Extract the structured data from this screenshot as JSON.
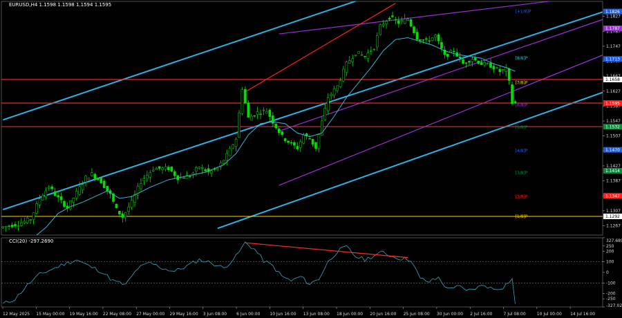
{
  "header": {
    "main_label": "EURUSD,H4  1.1598 1.1598 1.1594 1.1595",
    "osc_label": "CCI(20) -297.2690"
  },
  "colors": {
    "background": "#000000",
    "candle": "#00e000",
    "ma": "#3fb6d6",
    "channel": "#2bb3e6",
    "channel_purple": "#9b30d8",
    "level": "#ff2020",
    "yellow": "#ffd700",
    "cci": "#38a8c0",
    "divergence": "#ff2a2a",
    "badge_blue": "#1f5ce0",
    "badge_purple": "#9b30d8",
    "badge_green": "#0b8a3a"
  },
  "chart_data": [
    {
      "type": "line",
      "title": "EURUSD,H4",
      "y_axis": {
        "min": 1.1242,
        "max": 1.1867,
        "ticks": [
          1.1827,
          1.1787,
          1.1747,
          1.1707,
          1.1667,
          1.1627,
          1.1587,
          1.1547,
          1.1507,
          1.1467,
          1.1427,
          1.1387,
          1.1347,
          1.1307,
          1.1267
        ]
      },
      "x_axis": {
        "labels": [
          "12 May 2025",
          "15 May 00:00",
          "19 May 16:00",
          "22 May 08:00",
          "27 May 00:00",
          "29 May 16:00",
          "3 Jun 08:00",
          "6 Jun 00:00",
          "10 Jun 16:00",
          "13 Jun 08:00",
          "18 Jun 00:00",
          "20 Jun 16:00",
          "25 Jun 08:00",
          "30 Jun 00:00",
          "2 Jul 16:00",
          "7 Jul 08:00",
          "10 Jul 00:00",
          "14 Jul 16:00"
        ]
      },
      "price_path": [
        [
          0,
          1.1262
        ],
        [
          6,
          1.1272
        ],
        [
          10,
          1.1285
        ],
        [
          13,
          1.134
        ],
        [
          16,
          1.1372
        ],
        [
          19,
          1.134
        ],
        [
          22,
          1.1315
        ],
        [
          25,
          1.1355
        ],
        [
          28,
          1.1395
        ],
        [
          30,
          1.1405
        ],
        [
          33,
          1.1385
        ],
        [
          36,
          1.135
        ],
        [
          38,
          1.131
        ],
        [
          40,
          1.129
        ],
        [
          43,
          1.133
        ],
        [
          46,
          1.1385
        ],
        [
          50,
          1.142
        ],
        [
          55,
          1.142
        ],
        [
          58,
          1.1395
        ],
        [
          62,
          1.14
        ],
        [
          65,
          1.1425
        ],
        [
          68,
          1.141
        ],
        [
          71,
          1.142
        ],
        [
          74,
          1.1455
        ],
        [
          77,
          1.15
        ],
        [
          79,
          1.1635
        ],
        [
          81,
          1.1555
        ],
        [
          84,
          1.157
        ],
        [
          87,
          1.1575
        ],
        [
          89,
          1.1545
        ],
        [
          92,
          1.1505
        ],
        [
          95,
          1.1485
        ],
        [
          97,
          1.1475
        ],
        [
          99,
          1.151
        ],
        [
          101,
          1.15
        ],
        [
          103,
          1.1475
        ],
        [
          105,
          1.1545
        ],
        [
          107,
          1.161
        ],
        [
          110,
          1.164
        ],
        [
          113,
          1.17
        ],
        [
          116,
          1.173
        ],
        [
          119,
          1.172
        ],
        [
          122,
          1.1745
        ],
        [
          124,
          1.18
        ],
        [
          127,
          1.1825
        ],
        [
          130,
          1.181
        ],
        [
          133,
          1.182
        ],
        [
          136,
          1.177
        ],
        [
          139,
          1.176
        ],
        [
          142,
          1.1775
        ],
        [
          145,
          1.172
        ],
        [
          148,
          1.1735
        ],
        [
          151,
          1.17
        ],
        [
          154,
          1.1715
        ],
        [
          157,
          1.17
        ],
        [
          160,
          1.1695
        ],
        [
          163,
          1.168
        ],
        [
          165,
          1.1685
        ],
        [
          166,
          1.165
        ],
        [
          167,
          1.1595
        ]
      ],
      "ma_path": [
        [
          0,
          1.1225
        ],
        [
          10,
          1.1235
        ],
        [
          14,
          1.1262
        ],
        [
          18,
          1.13
        ],
        [
          22,
          1.1318
        ],
        [
          26,
          1.133
        ],
        [
          30,
          1.1345
        ],
        [
          34,
          1.136
        ],
        [
          38,
          1.134
        ],
        [
          42,
          1.1345
        ],
        [
          48,
          1.137
        ],
        [
          54,
          1.139
        ],
        [
          60,
          1.14
        ],
        [
          66,
          1.141
        ],
        [
          72,
          1.143
        ],
        [
          76,
          1.146
        ],
        [
          80,
          1.151
        ],
        [
          84,
          1.154
        ],
        [
          88,
          1.1545
        ],
        [
          92,
          1.154
        ],
        [
          96,
          1.1515
        ],
        [
          100,
          1.1505
        ],
        [
          104,
          1.1515
        ],
        [
          108,
          1.156
        ],
        [
          112,
          1.161
        ],
        [
          116,
          1.165
        ],
        [
          120,
          1.169
        ],
        [
          124,
          1.1735
        ],
        [
          128,
          1.1765
        ],
        [
          132,
          1.177
        ],
        [
          136,
          1.176
        ],
        [
          140,
          1.175
        ],
        [
          144,
          1.1735
        ],
        [
          148,
          1.1725
        ],
        [
          152,
          1.172
        ],
        [
          156,
          1.1715
        ],
        [
          160,
          1.17
        ],
        [
          164,
          1.169
        ],
        [
          167,
          1.168
        ]
      ],
      "channel_lines": [
        {
          "color": "channel",
          "from": [
            0,
            1.155
          ],
          "to": [
            122,
            1.1887
          ]
        },
        {
          "color": "channel",
          "from": [
            0,
            1.131
          ],
          "to": [
            196,
            1.184
          ]
        },
        {
          "color": "channel",
          "from": [
            70,
            1.126
          ],
          "to": [
            196,
            1.1625
          ]
        },
        {
          "color": "channel_purple",
          "from": [
            90,
            1.178
          ],
          "to": [
            196,
            1.1885
          ]
        },
        {
          "color": "channel_purple",
          "from": [
            90,
            1.152
          ],
          "to": [
            196,
            1.182
          ]
        },
        {
          "color": "channel_purple",
          "from": [
            90,
            1.1375
          ],
          "to": [
            196,
            1.1725
          ]
        },
        {
          "color": "level",
          "from": [
            79,
            1.1625
          ],
          "to": [
            128,
            1.1862
          ]
        }
      ],
      "levels": [
        {
          "price": 1.1658,
          "color": "level"
        },
        {
          "price": 1.1595,
          "color": "level"
        },
        {
          "price": 1.1532,
          "color": "level"
        },
        {
          "price": 1.1292,
          "color": "yellow"
        }
      ],
      "price_labels": [
        {
          "value": "1.1826",
          "price": 1.184,
          "style": "badge_blue"
        },
        {
          "value": "1.1787",
          "price": 1.1795,
          "style": "badge_purple"
        },
        {
          "value": "1.1713",
          "price": 1.1713,
          "style": "badge_blue"
        },
        {
          "value": "1.1658",
          "price": 1.1658,
          "style": "white"
        },
        {
          "value": "1.1595",
          "price": 1.1595,
          "style": "red"
        },
        {
          "value": "1.1532",
          "price": 1.1532,
          "style": "badge_green"
        },
        {
          "value": "1.1470",
          "price": 1.147,
          "style": "badge_blue"
        },
        {
          "value": "1.1414",
          "price": 1.1414,
          "style": "badge_green"
        },
        {
          "value": "1.1347",
          "price": 1.1347,
          "style": "red"
        },
        {
          "value": "1.1292",
          "price": 1.1292,
          "style": "white"
        }
      ],
      "murrey_labels": [
        {
          "text": "[+1/8]P",
          "price": 1.184,
          "color": "#2a5fe0"
        },
        {
          "text": "[8/8]P",
          "price": 1.1715,
          "color": "#3fb6d6"
        },
        {
          "text": "[7/8]P",
          "price": 1.165,
          "color": "#ffd700"
        },
        {
          "text": "[6/8]P",
          "price": 1.159,
          "color": "#9b30d8"
        },
        {
          "text": "[5/8]P",
          "price": 1.153,
          "color": "#0b8a3a"
        },
        {
          "text": "[4/8]P",
          "price": 1.1468,
          "color": "#2a5fe0"
        },
        {
          "text": "[3/8]P",
          "price": 1.1408,
          "color": "#0b8a3a"
        },
        {
          "text": "[2/8]P",
          "price": 1.1345,
          "color": "#ff2020"
        },
        {
          "text": "[1/8]P",
          "price": 1.1292,
          "color": "#ffd700"
        }
      ]
    },
    {
      "type": "line",
      "title": "CCI(20) -297.2690",
      "y_axis": {
        "min": -327.0,
        "max": 327.0,
        "ticks": [
          327.6899,
          250,
          200,
          100,
          0,
          -100,
          -200,
          -250,
          -327.0289
        ]
      },
      "levels": [
        100,
        -100
      ],
      "cci_path": [
        [
          0,
          -300
        ],
        [
          4,
          -250
        ],
        [
          8,
          -120
        ],
        [
          12,
          -20
        ],
        [
          16,
          30
        ],
        [
          20,
          80
        ],
        [
          24,
          120
        ],
        [
          28,
          60
        ],
        [
          32,
          10
        ],
        [
          36,
          -80
        ],
        [
          40,
          -120
        ],
        [
          44,
          40
        ],
        [
          48,
          90
        ],
        [
          52,
          40
        ],
        [
          56,
          10
        ],
        [
          60,
          60
        ],
        [
          64,
          120
        ],
        [
          68,
          90
        ],
        [
          72,
          40
        ],
        [
          76,
          150
        ],
        [
          79,
          280
        ],
        [
          82,
          220
        ],
        [
          85,
          110
        ],
        [
          88,
          60
        ],
        [
          91,
          -40
        ],
        [
          94,
          -80
        ],
        [
          97,
          -40
        ],
        [
          100,
          -110
        ],
        [
          103,
          -60
        ],
        [
          106,
          100
        ],
        [
          109,
          200
        ],
        [
          112,
          240
        ],
        [
          115,
          150
        ],
        [
          118,
          120
        ],
        [
          121,
          160
        ],
        [
          124,
          190
        ],
        [
          127,
          150
        ],
        [
          130,
          130
        ],
        [
          133,
          120
        ],
        [
          136,
          -60
        ],
        [
          139,
          -90
        ],
        [
          142,
          -50
        ],
        [
          145,
          -160
        ],
        [
          148,
          -120
        ],
        [
          151,
          -180
        ],
        [
          154,
          -150
        ],
        [
          157,
          -120
        ],
        [
          160,
          -160
        ],
        [
          163,
          -140
        ],
        [
          166,
          -60
        ],
        [
          167,
          -297
        ]
      ],
      "divergence": {
        "from": [
          79,
          280
        ],
        "to": [
          132,
          140
        ]
      }
    }
  ]
}
